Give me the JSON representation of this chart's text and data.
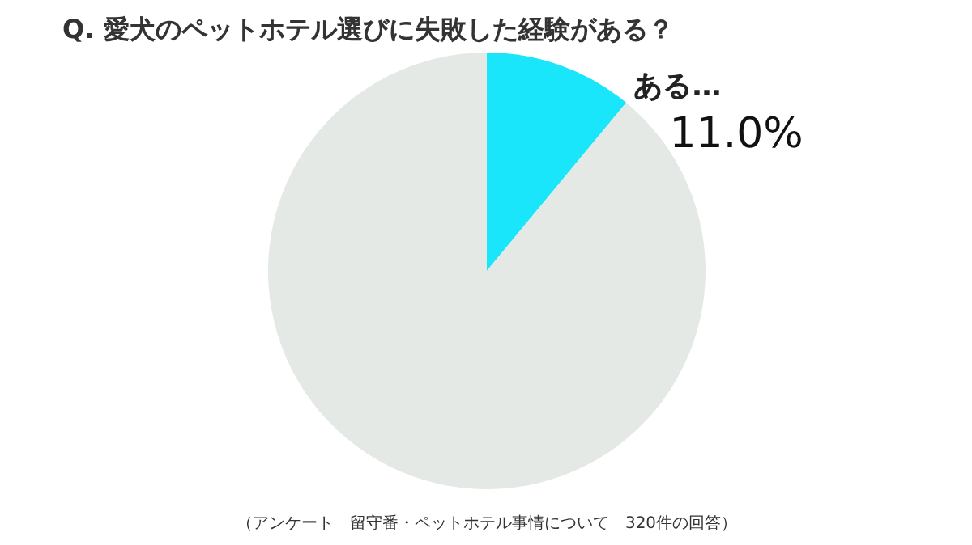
{
  "chart_data": {
    "type": "pie",
    "title": "Q.  愛犬のペットホテル選びに失敗した経験がある？",
    "categories": [
      "ある…",
      null
    ],
    "values": [
      11.0,
      89.0
    ],
    "colors": [
      "#19e6fa",
      "#e4e9e5"
    ],
    "value_labels": [
      "11.0%",
      null
    ],
    "annotations": [
      "（アンケート　留守番・ペットホテル事情について　320件の回答）"
    ]
  }
}
